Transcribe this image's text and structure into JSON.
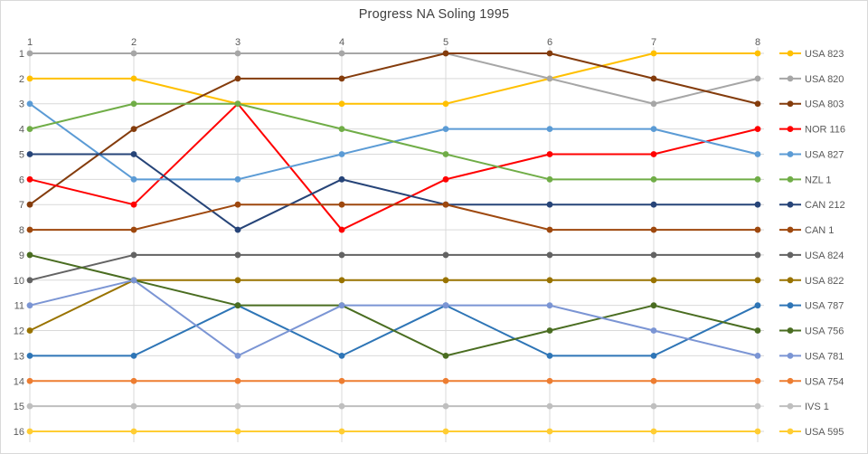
{
  "page": {
    "title": "Progress NA Soling 1995"
  },
  "colors": {
    "axis_text": "#595959",
    "title_text": "#404040",
    "gridline": "#d9d9d9",
    "background": "#ffffff"
  },
  "chart_data": {
    "type": "line",
    "title": "Progress NA Soling 1995",
    "xlabel": "",
    "ylabel": "",
    "x_axis": {
      "position": "top",
      "labels": [
        "1",
        "2",
        "3",
        "4",
        "5",
        "6",
        "7",
        "8"
      ]
    },
    "y_axis": {
      "position": "left",
      "inverted": true,
      "range": [
        1,
        16
      ],
      "labels": [
        "1",
        "2",
        "3",
        "4",
        "5",
        "6",
        "7",
        "8",
        "9",
        "10",
        "11",
        "12",
        "13",
        "14",
        "15",
        "16"
      ]
    },
    "grid": true,
    "legend_position": "right",
    "categories": [
      1,
      2,
      3,
      4,
      5,
      6,
      7,
      8
    ],
    "series": [
      {
        "name": "USA 823",
        "color": "#FFC000",
        "values": [
          2,
          2,
          3,
          3,
          3,
          2,
          1,
          1
        ]
      },
      {
        "name": "USA 820",
        "color": "#A6A6A6",
        "values": [
          1,
          1,
          1,
          1,
          1,
          2,
          3,
          2
        ]
      },
      {
        "name": "USA 803",
        "color": "#843C0C",
        "values": [
          7,
          4,
          2,
          2,
          1,
          1,
          2,
          3
        ]
      },
      {
        "name": "NOR 116",
        "color": "#FF0000",
        "values": [
          6,
          7,
          3,
          8,
          6,
          5,
          5,
          4
        ]
      },
      {
        "name": "USA 827",
        "color": "#5B9BD5",
        "values": [
          3,
          6,
          6,
          5,
          4,
          4,
          4,
          5
        ]
      },
      {
        "name": "NZL 1",
        "color": "#70AD47",
        "values": [
          4,
          3,
          3,
          4,
          5,
          6,
          6,
          6
        ]
      },
      {
        "name": "CAN 212",
        "color": "#264478",
        "values": [
          5,
          5,
          8,
          6,
          7,
          7,
          7,
          7
        ]
      },
      {
        "name": "CAN 1",
        "color": "#9E480E",
        "values": [
          8,
          8,
          7,
          7,
          7,
          8,
          8,
          8
        ]
      },
      {
        "name": "USA 824",
        "color": "#636363",
        "values": [
          10,
          9,
          9,
          9,
          9,
          9,
          9,
          9
        ]
      },
      {
        "name": "USA 822",
        "color": "#997300",
        "values": [
          12,
          10,
          10,
          10,
          10,
          10,
          10,
          10
        ]
      },
      {
        "name": "USA 787",
        "color": "#2E75B6",
        "values": [
          13,
          13,
          11,
          13,
          11,
          13,
          13,
          11
        ]
      },
      {
        "name": "USA 756",
        "color": "#4A6D21",
        "values": [
          9,
          10,
          11,
          11,
          13,
          12,
          11,
          12
        ]
      },
      {
        "name": "USA 781",
        "color": "#7B95D4",
        "values": [
          11,
          10,
          13,
          11,
          11,
          11,
          12,
          13
        ]
      },
      {
        "name": "USA 754",
        "color": "#ED7D31",
        "values": [
          14,
          14,
          14,
          14,
          14,
          14,
          14,
          14
        ]
      },
      {
        "name": "IVS 1",
        "color": "#BFBFBF",
        "values": [
          15,
          15,
          15,
          15,
          15,
          15,
          15,
          15
        ]
      },
      {
        "name": "USA 595",
        "color": "#FFCD33",
        "values": [
          16,
          16,
          16,
          16,
          16,
          16,
          16,
          16
        ]
      }
    ]
  }
}
